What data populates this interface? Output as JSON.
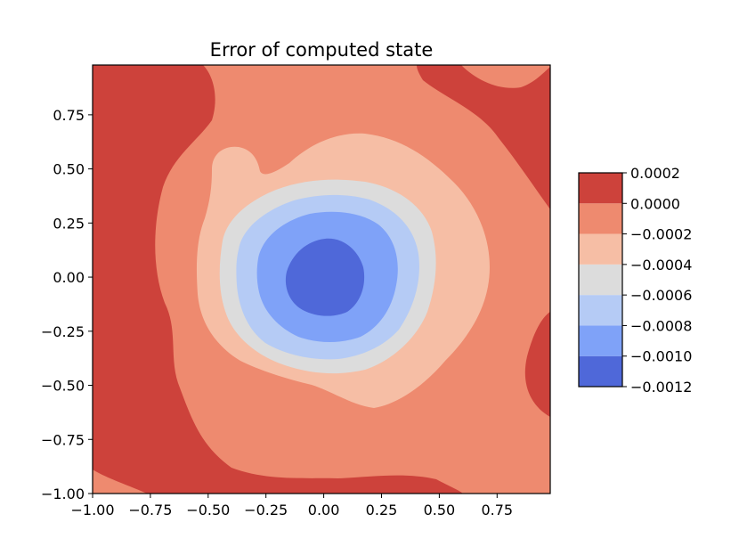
{
  "chart_data": {
    "type": "heatmap",
    "subtype": "filled-contour",
    "title": "Error of computed state",
    "xlabel": "",
    "ylabel": "",
    "xlim": [
      -1.0,
      0.98
    ],
    "ylim": [
      -1.0,
      0.98
    ],
    "x_ticks": [
      "−1.00",
      "−0.75",
      "−0.50",
      "−0.25",
      "0.00",
      "0.25",
      "0.50",
      "0.75"
    ],
    "y_ticks": [
      "−1.00",
      "−0.75",
      "−0.50",
      "−0.25",
      "0.00",
      "0.25",
      "0.50",
      "0.75"
    ],
    "x_tick_values": [
      -1.0,
      -0.75,
      -0.5,
      -0.25,
      0.0,
      0.25,
      0.5,
      0.75
    ],
    "y_tick_values": [
      -1.0,
      -0.75,
      -0.5,
      -0.25,
      0.0,
      0.25,
      0.5,
      0.75
    ],
    "colormap": "coolwarm",
    "levels": [
      -0.0012,
      -0.001,
      -0.0008,
      -0.0006,
      -0.0004,
      -0.0002,
      0.0,
      0.0002
    ],
    "colorbar_labels": [
      "−0.0012",
      "−0.0010",
      "−0.0008",
      "−0.0006",
      "−0.0004",
      "−0.0002",
      "0.0000",
      "0.0002"
    ],
    "band_colors": [
      "#4f68d9",
      "#7fa2f8",
      "#b5cbf5",
      "#dcdcdc",
      "#f6bea5",
      "#ee8a6f",
      "#cd423b"
    ],
    "minimum": {
      "x": 0.05,
      "y": 0.0,
      "value": -0.0011
    },
    "colorbar_placement": "right",
    "grid": false
  }
}
